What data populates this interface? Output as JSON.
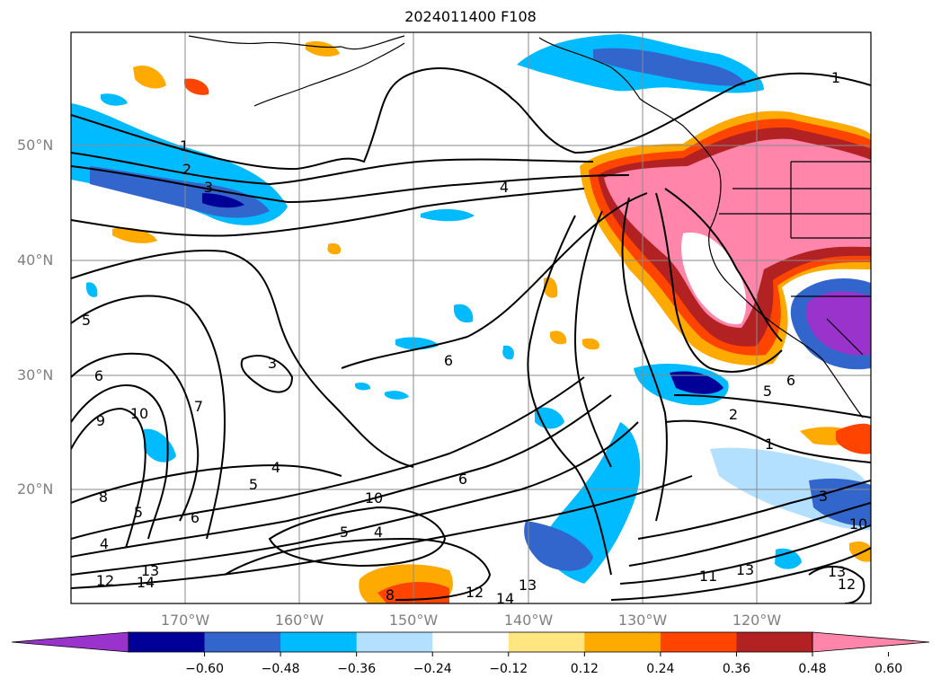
{
  "title": "2024011400 F108",
  "latitude_labels": [
    "50°N",
    "40°N",
    "30°N",
    "20°N"
  ],
  "longitude_labels": [
    "170°W",
    "160°W",
    "150°W",
    "140°W",
    "130°W",
    "120°W"
  ],
  "colorbar": {
    "ticks": [
      "−0.60",
      "−0.48",
      "−0.36",
      "−0.24",
      "−0.12",
      "0.12",
      "0.24",
      "0.36",
      "0.48",
      "0.60"
    ],
    "colors": [
      "#9933cc",
      "#000099",
      "#3366cc",
      "#00bbff",
      "#b3e0ff",
      "#ffffff",
      "#ffe680",
      "#ffaa00",
      "#ff4400",
      "#b22222",
      "#ff85aa"
    ],
    "extend": "both"
  },
  "contour_labels": [
    {
      "text": "1"
    },
    {
      "text": "2"
    },
    {
      "text": "3"
    },
    {
      "text": "4"
    },
    {
      "text": "1"
    },
    {
      "text": "5"
    },
    {
      "text": "6"
    },
    {
      "text": "9"
    },
    {
      "text": "10"
    },
    {
      "text": "7"
    },
    {
      "text": "3"
    },
    {
      "text": "6"
    },
    {
      "text": "8"
    },
    {
      "text": "5"
    },
    {
      "text": "6"
    },
    {
      "text": "4"
    },
    {
      "text": "5"
    },
    {
      "text": "4"
    },
    {
      "text": "10"
    },
    {
      "text": "6"
    },
    {
      "text": "5"
    },
    {
      "text": "4"
    },
    {
      "text": "12"
    },
    {
      "text": "13"
    },
    {
      "text": "14"
    },
    {
      "text": "8"
    },
    {
      "text": "12"
    },
    {
      "text": "14"
    },
    {
      "text": "13"
    },
    {
      "text": "11"
    },
    {
      "text": "13"
    },
    {
      "text": "5"
    },
    {
      "text": "6"
    },
    {
      "text": "2"
    },
    {
      "text": "1"
    },
    {
      "text": "3"
    },
    {
      "text": "10"
    },
    {
      "text": "13"
    },
    {
      "text": "12"
    }
  ]
}
